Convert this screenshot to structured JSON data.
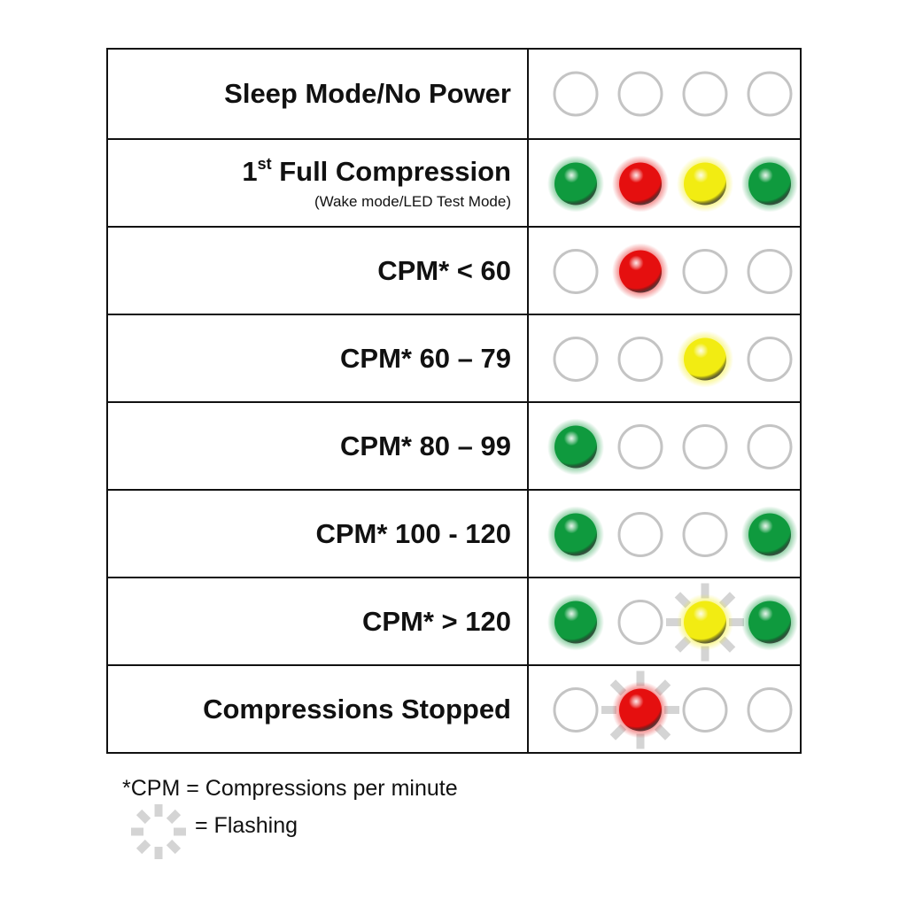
{
  "colors": {
    "green": "#0f9a3e",
    "red": "#e50f0f",
    "yellow": "#f2ec12",
    "off_ring": "#c4c4c4",
    "flash_ray": "#d4d4d4"
  },
  "rows": [
    {
      "label": "Sleep Mode/No Power",
      "leds": [
        "off",
        "off",
        "off",
        "off"
      ],
      "flashing": []
    },
    {
      "label_num": "1",
      "label_sup": "st",
      "label": " Full Compression",
      "sub": "(Wake mode/LED Test Mode)",
      "leds": [
        "green",
        "red",
        "yellow",
        "green"
      ],
      "flashing": []
    },
    {
      "label": "CPM* < 60",
      "leds": [
        "off",
        "red",
        "off",
        "off"
      ],
      "flashing": []
    },
    {
      "label": "CPM* 60 – 79",
      "leds": [
        "off",
        "off",
        "yellow",
        "off"
      ],
      "flashing": []
    },
    {
      "label": "CPM* 80 – 99",
      "leds": [
        "green",
        "off",
        "off",
        "off"
      ],
      "flashing": []
    },
    {
      "label": "CPM* 100 - 120",
      "leds": [
        "green",
        "off",
        "off",
        "green"
      ],
      "flashing": []
    },
    {
      "label": "CPM* > 120",
      "leds": [
        "green",
        "off",
        "yellow",
        "green"
      ],
      "flashing": [
        2
      ]
    },
    {
      "label": "Compressions Stopped",
      "leds": [
        "off",
        "red",
        "off",
        "off"
      ],
      "flashing": [
        1
      ]
    }
  ],
  "legend": {
    "cpm_note": "*CPM = Compressions per minute",
    "flashing_note": "= Flashing",
    "flashing_icon": "flashing-rays-icon"
  }
}
